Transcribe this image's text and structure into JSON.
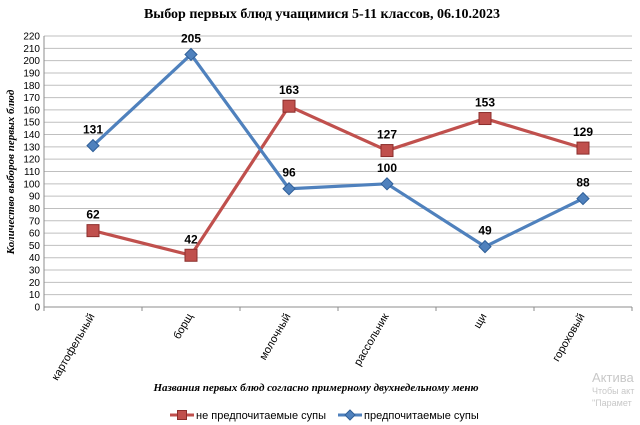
{
  "chart_data": {
    "type": "line",
    "title": "Выбор первых блюд учащимися 5-11 классов, 06.10.2023",
    "xlabel": "Названия первых блюд согласно примерному двухнедельному меню",
    "ylabel": "Количество выборов первых блюд",
    "categories": [
      "картофельный",
      "борщ",
      "молочный",
      "рассольник",
      "щи",
      "гороховый"
    ],
    "ylim": [
      0,
      220
    ],
    "ytick_step": 10,
    "grid": true,
    "legend_position": "bottom",
    "series": [
      {
        "name": "не предпочитаемые супы",
        "values": [
          62,
          42,
          163,
          127,
          153,
          129
        ],
        "color": "#c0504d",
        "marker": "square"
      },
      {
        "name": "предпочитаемые супы",
        "values": [
          131,
          205,
          96,
          100,
          49,
          88
        ],
        "color": "#4f81bd",
        "marker": "diamond"
      }
    ]
  },
  "watermark": {
    "line1": "Актива",
    "line2": "Чтобы акт",
    "line3": "\"Парамет"
  }
}
